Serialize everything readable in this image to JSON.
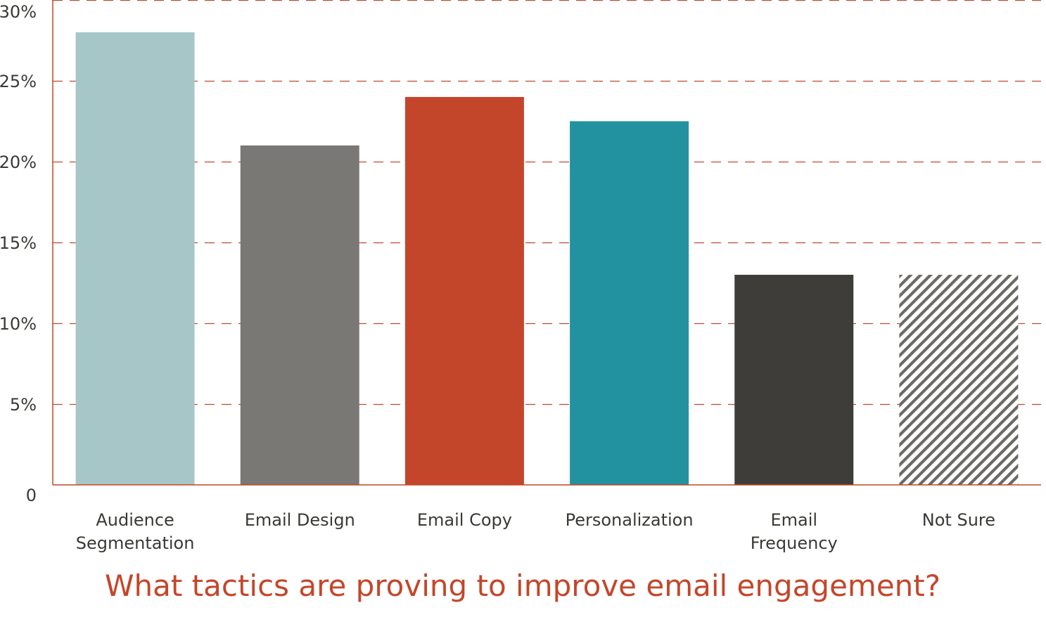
{
  "chart_data": {
    "type": "bar",
    "title": "What tactics are proving to improve email engagement?",
    "categories": [
      [
        "Audience",
        "Segmentation"
      ],
      [
        "Email Design"
      ],
      [
        "Email Copy"
      ],
      [
        "Personalization"
      ],
      [
        "Email",
        "Frequency"
      ],
      [
        "Not Sure"
      ]
    ],
    "values": [
      28,
      21,
      24,
      22.5,
      13,
      13
    ],
    "bar_colors": [
      "#a6c6c8",
      "#7a7874",
      "#c4462a",
      "#2292a0",
      "#3e3d39",
      "hatch"
    ],
    "ylim": [
      0,
      30
    ],
    "yticks": [
      {
        "value": 0,
        "label": "0"
      },
      {
        "value": 5,
        "label": "5%"
      },
      {
        "value": 10,
        "label": "10%"
      },
      {
        "value": 15,
        "label": "15%"
      },
      {
        "value": 20,
        "label": "20%"
      },
      {
        "value": 25,
        "label": "25%"
      },
      {
        "value": 30,
        "label": "30%"
      }
    ],
    "grid": "dashed horizontal",
    "grid_color": "#c4462a",
    "axis_color": "#c4462a",
    "xlabel": "",
    "ylabel": ""
  }
}
